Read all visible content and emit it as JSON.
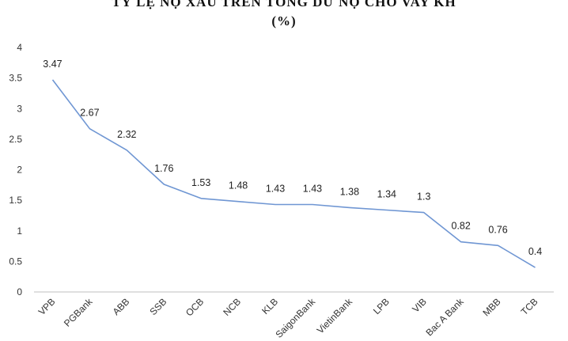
{
  "chart_data": {
    "type": "line",
    "title": "TỶ LỆ NỢ XẤU TRÊN TỔNG DƯ NỢ CHO VAY KH",
    "subtitle": "(%)",
    "categories": [
      "VPB",
      "PGBank",
      "ABB",
      "SSB",
      "OCB",
      "NCB",
      "KLB",
      "SaigonBank",
      "VietinBank",
      "LPB",
      "VIB",
      "Bac A Bank",
      "MBB",
      "TCB"
    ],
    "values": [
      3.47,
      2.67,
      2.32,
      1.76,
      1.53,
      1.48,
      1.43,
      1.43,
      1.38,
      1.34,
      1.3,
      0.82,
      0.76,
      0.4
    ],
    "data_labels": [
      "3.47",
      "2.67",
      "2.32",
      "1.76",
      "1.53",
      "1.48",
      "1.43",
      "1.43",
      "1.38",
      "1.34",
      "1.3",
      "0.82",
      "0.76",
      "0.4"
    ],
    "y_ticks": [
      "0",
      "0.5",
      "1",
      "1.5",
      "2",
      "2.5",
      "3",
      "3.5",
      "4"
    ],
    "ylim": [
      0,
      4
    ],
    "grid": false,
    "line_color": "#6f96d3"
  }
}
